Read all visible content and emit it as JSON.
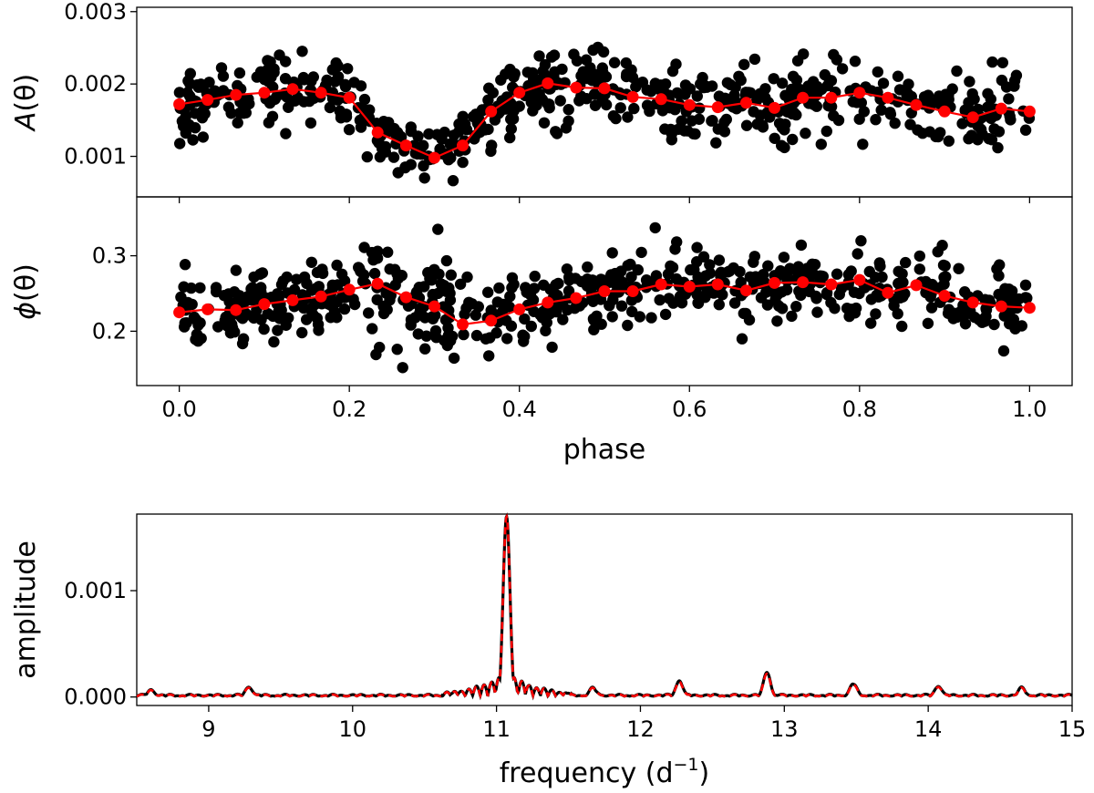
{
  "chart_data": [
    {
      "type": "scatter",
      "ylabel_letter": "A",
      "ylabel_arg": "(θ)",
      "xlabel": "",
      "xlim": [
        -0.05,
        1.05
      ],
      "ylim": [
        0.00044,
        0.00306
      ],
      "xticks": [
        0.0,
        0.2,
        0.4,
        0.6,
        0.8,
        1.0
      ],
      "yticks": [
        0.001,
        0.002,
        0.003
      ],
      "ytick_labels": [
        "0.001",
        "0.002",
        "0.003"
      ],
      "series": [
        {
          "name": "binned mean",
          "color": "#ff0000",
          "x": [
            0.0,
            0.0333,
            0.0667,
            0.1,
            0.1333,
            0.1667,
            0.2,
            0.2333,
            0.2667,
            0.3,
            0.3333,
            0.3667,
            0.4,
            0.4333,
            0.4667,
            0.5,
            0.5333,
            0.5667,
            0.6,
            0.6333,
            0.6667,
            0.7,
            0.7333,
            0.7667,
            0.8,
            0.8333,
            0.8667,
            0.9,
            0.9333,
            0.9667,
            1.0
          ],
          "y": [
            0.00172,
            0.00178,
            0.00185,
            0.00188,
            0.00193,
            0.00188,
            0.00181,
            0.00133,
            0.00115,
            0.00098,
            0.00115,
            0.00162,
            0.00188,
            0.00201,
            0.00195,
            0.00194,
            0.00182,
            0.00179,
            0.00171,
            0.00168,
            0.00174,
            0.00167,
            0.00181,
            0.00181,
            0.00188,
            0.00181,
            0.00171,
            0.00162,
            0.00154,
            0.00166,
            0.00162
          ]
        }
      ],
      "scatter": {
        "name": "measurements",
        "color": "#000000",
        "n_points": 620,
        "noise_sd": 0.00025
      }
    },
    {
      "type": "scatter",
      "ylabel_letter": "ϕ",
      "ylabel_arg": "(θ)",
      "xlabel": "phase",
      "xlim": [
        -0.05,
        1.05
      ],
      "ylim": [
        0.128,
        0.378
      ],
      "xticks": [
        0.0,
        0.2,
        0.4,
        0.6,
        0.8,
        1.0
      ],
      "xtick_labels": [
        "0.0",
        "0.2",
        "0.4",
        "0.6",
        "0.8",
        "1.0"
      ],
      "yticks": [
        0.2,
        0.3
      ],
      "ytick_labels": [
        "0.2",
        "0.3"
      ],
      "series": [
        {
          "name": "binned mean",
          "color": "#ff0000",
          "x": [
            0.0,
            0.0333,
            0.0667,
            0.1,
            0.1333,
            0.1667,
            0.2,
            0.2333,
            0.2667,
            0.3,
            0.3333,
            0.3667,
            0.4,
            0.4333,
            0.4667,
            0.5,
            0.5333,
            0.5667,
            0.6,
            0.6333,
            0.6667,
            0.7,
            0.7333,
            0.7667,
            0.8,
            0.8333,
            0.8667,
            0.9,
            0.9333,
            0.9667,
            1.0
          ],
          "y": [
            0.225,
            0.229,
            0.228,
            0.236,
            0.241,
            0.246,
            0.255,
            0.263,
            0.245,
            0.233,
            0.209,
            0.214,
            0.229,
            0.238,
            0.244,
            0.253,
            0.253,
            0.262,
            0.259,
            0.262,
            0.254,
            0.264,
            0.265,
            0.262,
            0.268,
            0.251,
            0.261,
            0.247,
            0.238,
            0.233,
            0.231
          ]
        }
      ],
      "scatter": {
        "name": "measurements",
        "color": "#000000",
        "n_points": 620,
        "noise_sd": 0.022
      }
    },
    {
      "type": "line",
      "xlabel": "frequency (d",
      "xlabel_exp": "−1",
      "xlabel_close": ")",
      "ylabel": "amplitude",
      "xlim": [
        8.5,
        15.0
      ],
      "ylim": [
        -8e-05,
        0.00172
      ],
      "xticks": [
        9,
        10,
        11,
        12,
        13,
        14,
        15
      ],
      "xtick_labels": [
        "9",
        "10",
        "11",
        "12",
        "13",
        "14",
        "15"
      ],
      "yticks": [
        0.0,
        0.001
      ],
      "ytick_labels": [
        "0.000",
        "0.001"
      ],
      "peaks": [
        {
          "freq": 11.07,
          "amp": 0.00168
        },
        {
          "freq": 12.88,
          "amp": 0.00022
        },
        {
          "freq": 12.27,
          "amp": 0.00014
        },
        {
          "freq": 13.48,
          "amp": 0.00011
        },
        {
          "freq": 14.07,
          "amp": 9e-05
        },
        {
          "freq": 9.28,
          "amp": 8e-05
        },
        {
          "freq": 14.65,
          "amp": 7e-05
        },
        {
          "freq": 11.67,
          "amp": 7e-05
        },
        {
          "freq": 8.6,
          "amp": 5e-05
        }
      ],
      "series": [
        {
          "name": "data spectrum",
          "color": "#000000",
          "style": "solid"
        },
        {
          "name": "model spectrum",
          "color": "#ff0000",
          "style": "dashed"
        }
      ]
    }
  ]
}
